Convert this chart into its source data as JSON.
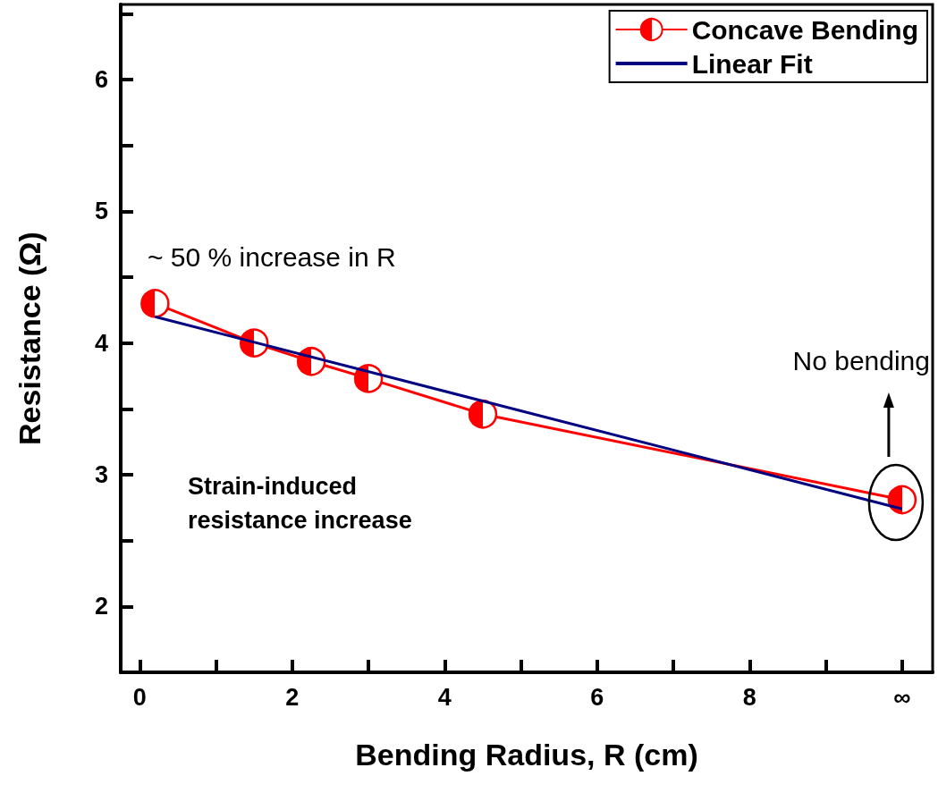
{
  "chart_data": {
    "type": "line",
    "xlabel": "Bending Radius, R (cm)",
    "ylabel": "Resistance (Ω)",
    "xlim": [
      -0.25,
      10.4
    ],
    "ylim": [
      1.5,
      6.57
    ],
    "xticks": [
      0,
      {
        "value": 1,
        "label": null
      },
      2,
      {
        "value": 3,
        "label": null
      },
      4,
      {
        "value": 5,
        "label": null
      },
      6,
      {
        "value": 7,
        "label": null
      },
      8,
      {
        "value": 9,
        "label": null
      },
      {
        "value": 10,
        "label": "∞"
      }
    ],
    "yticks": [
      {
        "value": 1.5,
        "label": null
      },
      2,
      {
        "value": 2.5,
        "label": null
      },
      3,
      {
        "value": 3.5,
        "label": null
      },
      4,
      {
        "value": 4.5,
        "label": null
      },
      5,
      {
        "value": 5.5,
        "label": null
      },
      6,
      {
        "value": 6.5,
        "label": null
      }
    ],
    "series": [
      {
        "name": "Concave Bending",
        "color": "#ff0000",
        "marker": "circle",
        "x": [
          0.2,
          1.5,
          2.25,
          3,
          4.5,
          10
        ],
        "values": [
          4.3,
          4.0,
          3.86,
          3.73,
          3.46,
          2.81
        ]
      },
      {
        "name": "Linear Fit",
        "color": "#000080",
        "marker": "none",
        "x": [
          0.2,
          10
        ],
        "values": [
          4.2,
          2.74
        ]
      }
    ],
    "annotations": [
      "~ 50 % increase in R",
      "Strain-induced resistance increase",
      "No bending"
    ],
    "legend": "top right",
    "grid": false
  }
}
